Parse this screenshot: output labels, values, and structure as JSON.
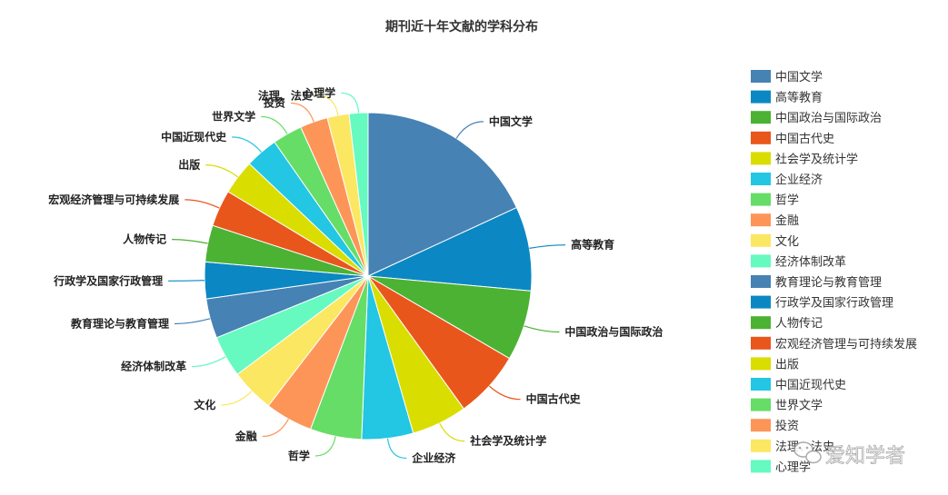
{
  "chart_data": {
    "type": "pie",
    "title": "期刊近十年文献的学科分布",
    "legend_position": "right",
    "categories": [
      "中国文学",
      "高等教育",
      "中国政治与国际政治",
      "中国古代史",
      "社会学及统计学",
      "企业经济",
      "哲学",
      "金融",
      "文化",
      "经济体制改革",
      "教育理论与教育管理",
      "行政学及国家行政管理",
      "人物传记",
      "宏观经济管理与可持续发展",
      "出版",
      "中国近现代史",
      "世界文学",
      "投资",
      "法理、法史",
      "心理学"
    ],
    "values": [
      18.5,
      8.5,
      7.1,
      6.8,
      5.6,
      5.2,
      5.2,
      4.8,
      4.4,
      4.2,
      4.0,
      3.7,
      3.7,
      3.7,
      3.5,
      3.3,
      3.0,
      2.8,
      2.2,
      1.9
    ],
    "colors": [
      "#4682b4",
      "#0b88c3",
      "#4cb233",
      "#e9561c",
      "#dadd00",
      "#23c6e3",
      "#66dd66",
      "#fd9559",
      "#fbe762",
      "#66f9c0",
      "#4682b4",
      "#0b88c3",
      "#4cb233",
      "#e9561c",
      "#dadd00",
      "#23c6e3",
      "#66dd66",
      "#fd9559",
      "#fbe762",
      "#66f9c0"
    ]
  },
  "legend": {
    "items": [
      "中国文学",
      "高等教育",
      "中国政治与国际政治",
      "中国古代史",
      "社会学及统计学",
      "企业经济",
      "哲学",
      "金融",
      "文化",
      "经济体制改革",
      "教育理论与教育管理",
      "行政学及国家行政管理",
      "人物传记",
      "宏观经济管理与可持续发展",
      "出版",
      "中国近现代史",
      "世界文学",
      "投资",
      "法理、法史",
      "心理学"
    ]
  },
  "watermark": {
    "text": "爱知学者",
    "icon": "wechat-icon"
  }
}
